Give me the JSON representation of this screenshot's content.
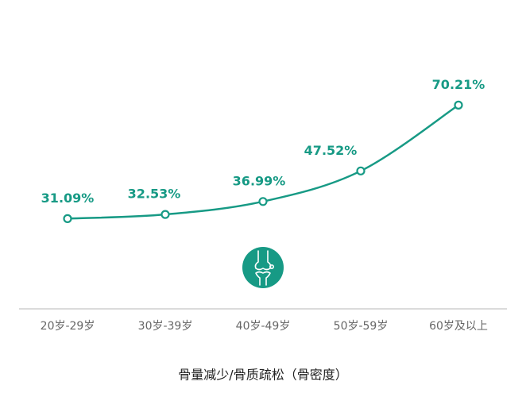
{
  "chart_data": {
    "type": "line",
    "title": "骨量减少/骨质疏松（骨密度）",
    "categories": [
      "20岁-29岁",
      "30岁-39岁",
      "40岁-49岁",
      "50岁-59岁",
      "60岁及以上"
    ],
    "values": [
      31.09,
      32.53,
      36.99,
      47.52,
      70.21
    ],
    "value_labels": [
      "31.09%",
      "32.53%",
      "36.99%",
      "47.52%",
      "70.21%"
    ],
    "color": "#179a85"
  }
}
